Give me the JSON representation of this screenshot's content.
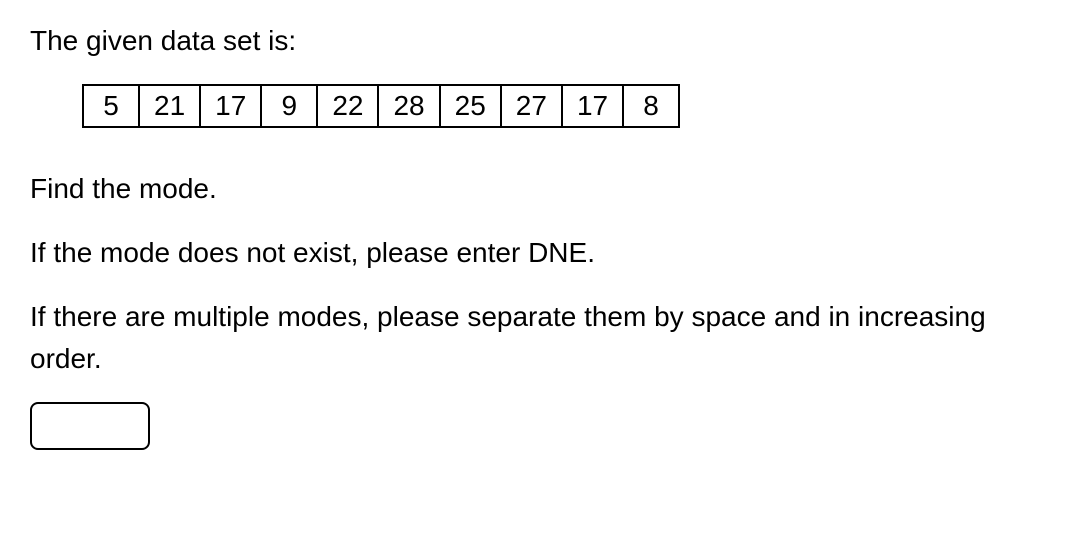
{
  "question": {
    "intro": "The given data set is:",
    "data_values": [
      5,
      21,
      17,
      9,
      22,
      28,
      25,
      27,
      17,
      8
    ],
    "instruction": "Find the mode.",
    "note_dne": "If the mode does not exist, please enter DNE.",
    "note_multi": "If there are multiple modes, please separate them by space and in increasing order."
  },
  "answer": {
    "value": ""
  },
  "style": {
    "text_color": "#000000",
    "background_color": "#ffffff",
    "cell_border_color": "#000000",
    "answer_border_color": "#000000",
    "font_size_body": 28,
    "cell_padding_x": 14,
    "cell_padding_y": 2,
    "answer_border_radius": 8,
    "cell_border_width": 2
  }
}
